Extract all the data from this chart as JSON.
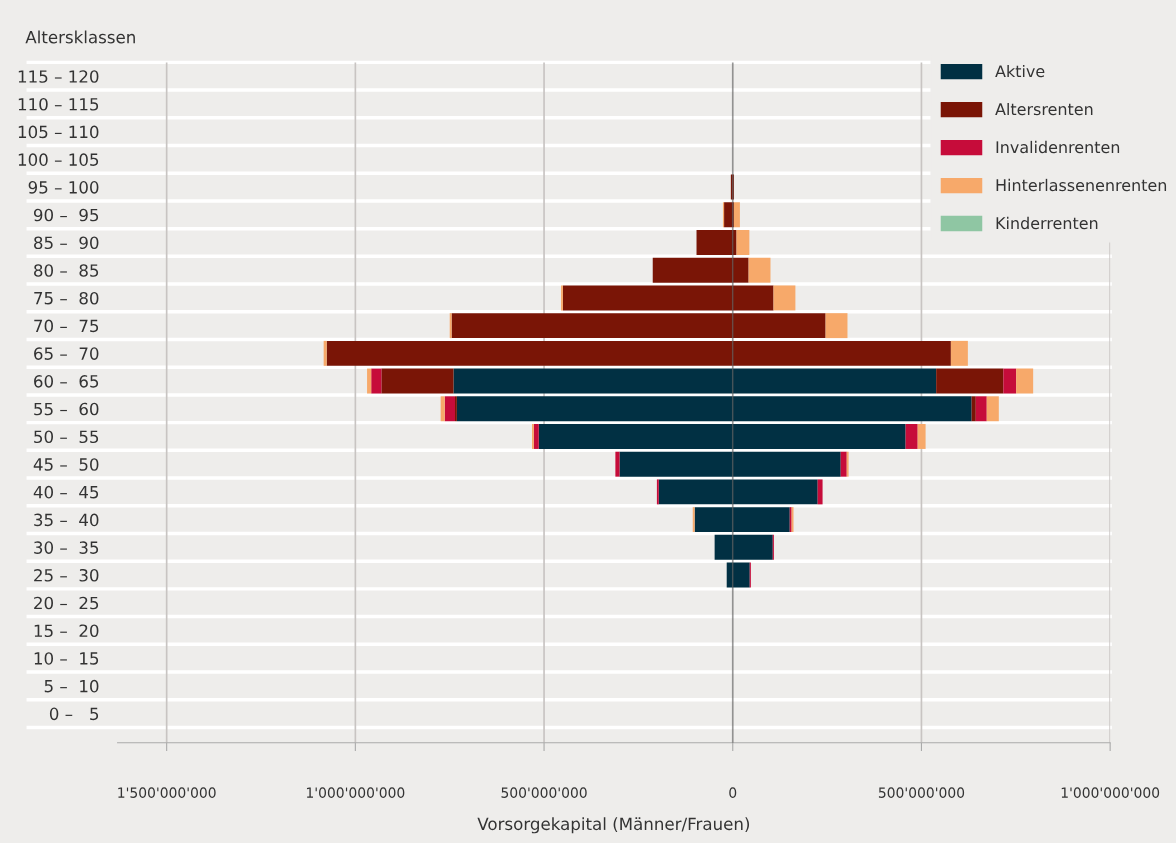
{
  "chart_data": {
    "type": "bar",
    "orientation": "horizontal",
    "stacked": true,
    "xlabel": "Vorsorgekapital (Männer/Frauen)",
    "ylabel": "Altersklassen",
    "categories": [
      "115 – 120",
      "110 – 115",
      "105 – 110",
      "100 – 105",
      "95 – 100",
      "90 –  95",
      "85 –  90",
      "80 –  85",
      "75 –  80",
      "70 –  75",
      "65 –  70",
      "60 –  65",
      "55 –  60",
      "50 –  55",
      "45 –  50",
      "40 –  45",
      "35 –  40",
      "30 –  35",
      "25 –  30",
      "20 –  25",
      "15 –  20",
      "10 –  15",
      "5 –  10",
      "0 –   5"
    ],
    "series": [
      {
        "name": "Aktive",
        "color": "#013043",
        "values": [
          null,
          null,
          null,
          null,
          null,
          null,
          null,
          null,
          null,
          null,
          null,
          -740000000,
          -731000000,
          -514000000,
          -300000000,
          -196000000,
          -101000000,
          -48000000,
          -16000000,
          null,
          null,
          null,
          null,
          null
        ]
      },
      {
        "name": "Altersrenten",
        "color": "#7a1506",
        "values": [
          null,
          null,
          null,
          null,
          -5000000,
          -23000000,
          -96000000,
          -212000000,
          -450000000,
          -745000000,
          -1076000000,
          -191000000,
          -5000000,
          null,
          null,
          null,
          null,
          null,
          null,
          null,
          null,
          null,
          null,
          null
        ]
      },
      {
        "name": "Invalidenrenten",
        "color": "#c60c3a",
        "values": [
          null,
          null,
          null,
          null,
          null,
          null,
          null,
          null,
          null,
          null,
          null,
          -27000000,
          -27000000,
          -13000000,
          -11000000,
          -5000000,
          null,
          null,
          null,
          null,
          null,
          null,
          null,
          null
        ]
      },
      {
        "name": "Hinterlassenenrenten",
        "color": "#f7a96a",
        "values": [
          null,
          null,
          null,
          null,
          null,
          -3000000,
          null,
          null,
          -5000000,
          -5000000,
          -8000000,
          -11000000,
          -11000000,
          -5000000,
          null,
          null,
          -5000000,
          null,
          null,
          null,
          null,
          null,
          null,
          null
        ]
      },
      {
        "name": "Kinderrenten",
        "color": "#8fc6a3",
        "values": [
          null,
          null,
          null,
          null,
          null,
          null,
          null,
          null,
          null,
          null,
          null,
          null,
          null,
          null,
          null,
          null,
          null,
          null,
          null,
          null,
          null,
          null,
          null,
          null
        ]
      },
      {
        "color": "#013043",
        "values": [
          null,
          null,
          null,
          null,
          null,
          null,
          null,
          null,
          null,
          null,
          null,
          539000000,
          633000000,
          458000000,
          286000000,
          225000000,
          151000000,
          106000000,
          45000000,
          null,
          null,
          null,
          null,
          null
        ]
      },
      {
        "color": "#7a1506",
        "values": [
          null,
          null,
          null,
          null,
          3000000,
          3000000,
          10000000,
          42000000,
          108000000,
          246000000,
          578000000,
          178000000,
          11000000,
          null,
          null,
          null,
          null,
          null,
          null,
          null,
          null,
          null,
          null,
          null
        ]
      },
      {
        "color": "#c60c3a",
        "values": [
          null,
          null,
          null,
          null,
          null,
          null,
          null,
          null,
          null,
          null,
          null,
          34000000,
          29000000,
          32000000,
          16000000,
          13000000,
          5000000,
          3000000,
          3000000,
          null,
          null,
          null,
          null,
          null
        ]
      },
      {
        "color": "#f7a96a",
        "values": [
          null,
          null,
          null,
          null,
          null,
          16000000,
          34000000,
          58000000,
          58000000,
          58000000,
          45000000,
          45000000,
          32000000,
          21000000,
          5000000,
          null,
          5000000,
          null,
          null,
          null,
          null,
          null,
          null,
          null
        ]
      },
      {
        "color": "#8fc6a3",
        "values": [
          null,
          null,
          null,
          null,
          null,
          null,
          null,
          null,
          null,
          null,
          null,
          null,
          null,
          null,
          null,
          null,
          null,
          null,
          null,
          null,
          null,
          null,
          null,
          null
        ]
      }
    ],
    "xlim": [
      -1630000000,
      1000000000
    ],
    "xticks": [
      {
        "value": -1500000000,
        "label": "1'500'000'000"
      },
      {
        "value": -1000000000,
        "label": "1'000'000'000"
      },
      {
        "value": -500000000,
        "label": "500'000'000"
      },
      0,
      {
        "value": 500000000,
        "label": "500'000'000"
      },
      {
        "value": 1000000000,
        "label": "1'000'000'000"
      }
    ],
    "grid": "x",
    "legend": "top right"
  }
}
